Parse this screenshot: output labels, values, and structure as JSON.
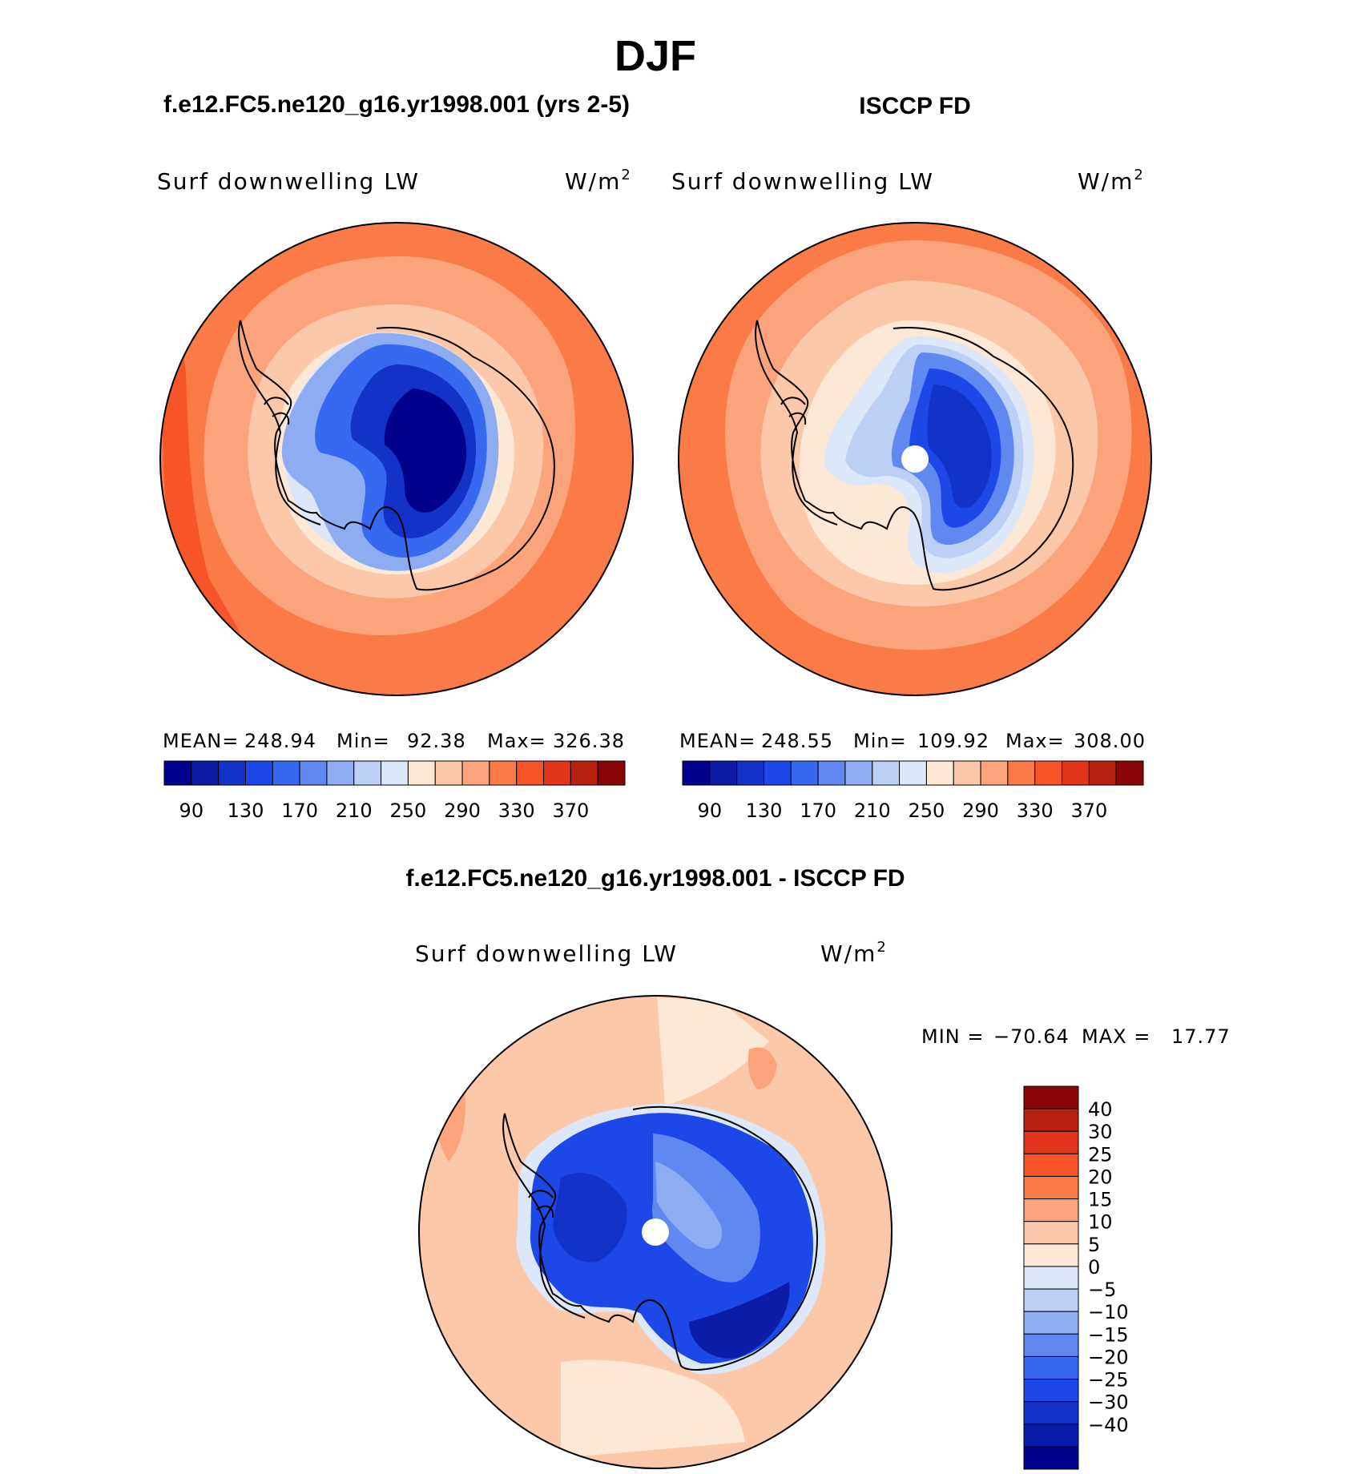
{
  "figure": {
    "title": "DJF",
    "panel_top_left_title": "f.e12.FC5.ne120_g16.yr1998.001 (yrs 2-5)",
    "panel_top_right_title": "ISCCP FD",
    "panel_bottom_title": "f.e12.FC5.ne120_g16.yr1998.001 - ISCCP FD"
  },
  "chart_data": [
    {
      "type": "heatmap",
      "projection": "south-polar-stereographic",
      "name": "model",
      "left_label": "Surf downwelling LW",
      "units_base": "W/m",
      "units_exp": "2",
      "stats": {
        "mean_label": "MEAN=",
        "mean": "248.94",
        "min_label": "Min=",
        "min": "92.38",
        "max_label": "Max=",
        "max": "326.38"
      },
      "colorbar_ticks": [
        "90",
        "130",
        "170",
        "210",
        "250",
        "290",
        "330",
        "370"
      ],
      "colors": [
        "#00008c",
        "#0a1ca8",
        "#1232c8",
        "#1c48e8",
        "#3668f0",
        "#6088f0",
        "#8eacf2",
        "#bcd0f6",
        "#dce8fa",
        "#fde7d5",
        "#fcc8aa",
        "#fba47c",
        "#fa7a48",
        "#f8542a",
        "#e2341a",
        "#b82010",
        "#8a0606"
      ]
    },
    {
      "type": "heatmap",
      "projection": "south-polar-stereographic",
      "name": "obs",
      "left_label": "Surf downwelling LW",
      "units_base": "W/m",
      "units_exp": "2",
      "stats": {
        "mean_label": "MEAN=",
        "mean": "248.55",
        "min_label": "Min=",
        "min": "109.92",
        "max_label": "Max=",
        "max": "308.00"
      },
      "colorbar_ticks": [
        "90",
        "130",
        "170",
        "210",
        "250",
        "290",
        "330",
        "370"
      ],
      "colors": [
        "#00008c",
        "#0a1ca8",
        "#1232c8",
        "#1c48e8",
        "#3668f0",
        "#6088f0",
        "#8eacf2",
        "#bcd0f6",
        "#dce8fa",
        "#fde7d5",
        "#fcc8aa",
        "#fba47c",
        "#fa7a48",
        "#f8542a",
        "#e2341a",
        "#b82010",
        "#8a0606"
      ]
    },
    {
      "type": "heatmap",
      "projection": "south-polar-stereographic",
      "name": "difference",
      "left_label": "Surf downwelling LW",
      "units_base": "W/m",
      "units_exp": "2",
      "stats": {
        "min_label": "MIN =",
        "min": "−70.64",
        "max_label": "MAX =",
        "max": "17.77"
      },
      "colorbar_ticks": [
        "40",
        "30",
        "25",
        "20",
        "15",
        "10",
        "5",
        "0",
        "−5",
        "−10",
        "−15",
        "−20",
        "−25",
        "−30",
        "−40"
      ],
      "colors": [
        "#8a0606",
        "#b82010",
        "#e2341a",
        "#f8542a",
        "#fa7a48",
        "#fba47c",
        "#fcc8aa",
        "#fde7d5",
        "#dce8fa",
        "#bcd0f6",
        "#8eacf2",
        "#6088f0",
        "#3668f0",
        "#1c48e8",
        "#1232c8",
        "#0a1ca8",
        "#00008c"
      ]
    }
  ]
}
